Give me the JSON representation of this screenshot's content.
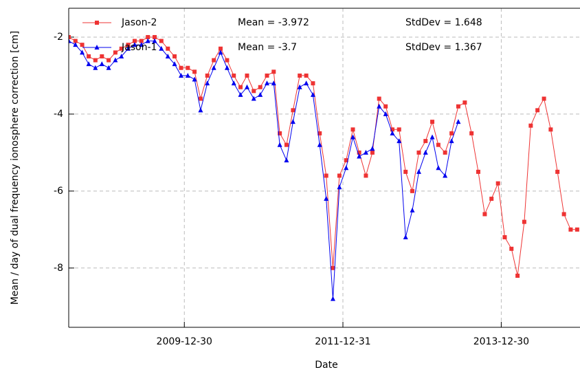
{
  "chart_data": {
    "type": "line",
    "y_label": "Mean / day of dual frequency ionosphere correction [cm]",
    "x_label": "Date",
    "annotations": [
      "Mean = -3.972",
      "StdDev = 1.648",
      "Mean = -3.7",
      "StdDev = 1.367"
    ],
    "x": [
      "2008-07-15",
      "2008-08-15",
      "2008-09-15",
      "2008-10-15",
      "2008-11-15",
      "2008-12-15",
      "2009-01-15",
      "2009-02-15",
      "2009-03-15",
      "2009-04-15",
      "2009-05-15",
      "2009-06-15",
      "2009-07-15",
      "2009-08-15",
      "2009-09-15",
      "2009-10-15",
      "2009-11-15",
      "2009-12-15",
      "2010-01-15",
      "2010-02-15",
      "2010-03-15",
      "2010-04-15",
      "2010-05-15",
      "2010-06-15",
      "2010-07-15",
      "2010-08-15",
      "2010-09-15",
      "2010-10-15",
      "2010-11-15",
      "2010-12-15",
      "2011-01-15",
      "2011-02-15",
      "2011-03-15",
      "2011-04-15",
      "2011-05-15",
      "2011-06-15",
      "2011-07-15",
      "2011-08-15",
      "2011-09-15",
      "2011-10-15",
      "2011-11-15",
      "2011-12-15",
      "2012-01-15",
      "2012-02-15",
      "2012-03-15",
      "2012-04-15",
      "2012-05-15",
      "2012-06-15",
      "2012-07-15",
      "2012-08-15",
      "2012-09-15",
      "2012-10-15",
      "2012-11-15",
      "2012-12-15",
      "2013-01-15",
      "2013-02-15",
      "2013-03-15",
      "2013-04-15",
      "2013-05-15",
      "2013-06-15",
      "2013-07-15",
      "2013-08-15",
      "2013-09-15",
      "2013-10-15",
      "2013-11-15",
      "2013-12-15",
      "2014-01-15",
      "2014-02-15",
      "2014-03-15",
      "2014-04-15",
      "2014-05-15",
      "2014-06-15",
      "2014-07-15",
      "2014-08-15",
      "2014-09-15",
      "2014-10-15",
      "2014-11-15",
      "2014-12-15"
    ],
    "series": [
      {
        "name": "Jason-2",
        "color": "#ee3333",
        "marker": "square",
        "values": [
          -2.0,
          -2.1,
          -2.2,
          -2.5,
          -2.6,
          -2.5,
          -2.6,
          -2.4,
          -2.3,
          -2.2,
          -2.1,
          -2.1,
          -2.0,
          -2.0,
          -2.1,
          -2.3,
          -2.5,
          -2.8,
          -2.8,
          -2.9,
          -3.6,
          -3.0,
          -2.6,
          -2.3,
          -2.6,
          -3.0,
          -3.3,
          -3.0,
          -3.4,
          -3.3,
          -3.0,
          -2.9,
          -4.5,
          -4.8,
          -3.9,
          -3.0,
          -3.0,
          -3.2,
          -4.5,
          -5.6,
          -8.0,
          -5.6,
          -5.2,
          -4.4,
          -5.0,
          -5.6,
          -5.0,
          -3.6,
          -3.8,
          -4.4,
          -4.4,
          -5.5,
          -6.0,
          -5.0,
          -4.7,
          -4.2,
          -4.8,
          -5.0,
          -4.5,
          -3.8,
          -3.7,
          -4.5,
          -5.5,
          -6.6,
          -6.2,
          -5.8,
          -7.2,
          -7.5,
          -8.2,
          -6.8,
          -4.3,
          -3.9,
          -3.6,
          -4.4,
          -5.5,
          -6.6,
          -7.0,
          -7.0
        ]
      },
      {
        "name": "Jason-1",
        "color": "#0000ee",
        "marker": "triangle",
        "values": [
          -2.1,
          -2.2,
          -2.4,
          -2.7,
          -2.8,
          -2.7,
          -2.8,
          -2.6,
          -2.5,
          -2.3,
          -2.2,
          -2.2,
          -2.1,
          -2.1,
          -2.3,
          -2.5,
          -2.7,
          -3.0,
          -3.0,
          -3.1,
          -3.9,
          -3.2,
          -2.8,
          -2.4,
          -2.8,
          -3.2,
          -3.5,
          -3.3,
          -3.6,
          -3.5,
          -3.2,
          -3.2,
          -4.8,
          -5.2,
          -4.2,
          -3.3,
          -3.2,
          -3.5,
          -4.8,
          -6.2,
          -8.8,
          -5.9,
          -5.4,
          -4.6,
          -5.1,
          -5.0,
          -4.9,
          -3.8,
          -4.0,
          -4.5,
          -4.7,
          -7.2,
          -6.5,
          -5.5,
          -5.0,
          -4.6,
          -5.4,
          -5.6,
          -4.7,
          -4.2,
          null,
          null,
          null,
          null,
          null,
          null,
          null,
          null,
          null,
          null,
          null,
          null,
          null,
          null,
          null,
          null,
          null,
          null
        ]
      }
    ],
    "xlim": [
      "2008-07-15",
      "2014-12-28"
    ],
    "xticks": [
      "2009-12-30",
      "2011-12-31",
      "2013-12-30"
    ],
    "ylim": [
      -9.54,
      -1.25
    ],
    "yticks": [
      -8,
      -6,
      -4,
      -2
    ],
    "grid": true
  }
}
